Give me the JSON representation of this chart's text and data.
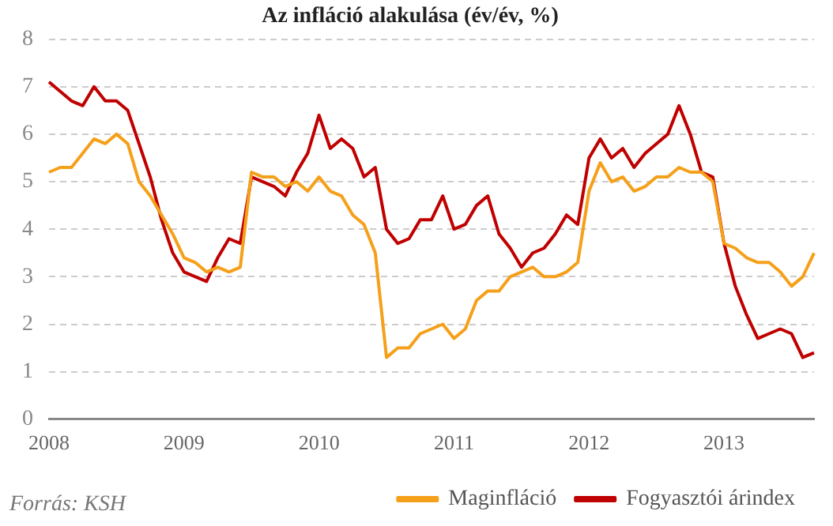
{
  "chart_data": {
    "type": "line",
    "title": "Az infláció alakulása (év/év, %)",
    "categories": [
      "2008",
      null,
      null,
      null,
      null,
      null,
      null,
      null,
      null,
      null,
      null,
      null,
      "2009",
      null,
      null,
      null,
      null,
      null,
      null,
      null,
      null,
      null,
      null,
      null,
      "2010",
      null,
      null,
      null,
      null,
      null,
      null,
      null,
      null,
      null,
      null,
      null,
      "2011",
      null,
      null,
      null,
      null,
      null,
      null,
      null,
      null,
      null,
      null,
      null,
      "2012",
      null,
      null,
      null,
      null,
      null,
      null,
      null,
      null,
      null,
      null,
      null,
      "2013",
      null,
      null,
      null,
      null,
      null,
      null,
      null,
      null
    ],
    "series": [
      {
        "name": "Maginfláció",
        "color": "#f5a01a",
        "values": [
          5.2,
          5.3,
          5.3,
          5.6,
          5.9,
          5.8,
          6.0,
          5.8,
          5.0,
          4.7,
          4.3,
          3.9,
          3.4,
          3.3,
          3.1,
          3.2,
          3.1,
          3.2,
          5.2,
          5.1,
          5.1,
          4.9,
          5.0,
          4.8,
          5.1,
          4.8,
          4.7,
          4.3,
          4.1,
          3.5,
          1.3,
          1.5,
          1.5,
          1.8,
          1.9,
          2.0,
          1.7,
          1.9,
          2.5,
          2.7,
          2.7,
          3.0,
          3.1,
          3.2,
          3.0,
          3.0,
          3.1,
          3.3,
          4.8,
          5.4,
          5.0,
          5.1,
          4.8,
          4.9,
          5.1,
          5.1,
          5.3,
          5.2,
          5.2,
          5.0,
          3.7,
          3.6,
          3.4,
          3.3,
          3.3,
          3.1,
          2.8,
          3.0,
          3.5
        ]
      },
      {
        "name": "Fogyasztói árindex",
        "color": "#c00000",
        "values": [
          7.1,
          6.9,
          6.7,
          6.6,
          7.0,
          6.7,
          6.7,
          6.5,
          5.8,
          5.1,
          4.2,
          3.5,
          3.1,
          3.0,
          2.9,
          3.4,
          3.8,
          3.7,
          5.1,
          5.0,
          4.9,
          4.7,
          5.2,
          5.6,
          6.4,
          5.7,
          5.9,
          5.7,
          5.1,
          5.3,
          4.0,
          3.7,
          3.8,
          4.2,
          4.2,
          4.7,
          4.0,
          4.1,
          4.5,
          4.7,
          3.9,
          3.6,
          3.2,
          3.5,
          3.6,
          3.9,
          4.3,
          4.1,
          5.5,
          5.9,
          5.5,
          5.7,
          5.3,
          5.6,
          5.8,
          6.0,
          6.6,
          6.0,
          5.2,
          5.1,
          3.7,
          2.8,
          2.2,
          1.7,
          1.8,
          1.9,
          1.8,
          1.3,
          1.4
        ]
      }
    ],
    "ylim": [
      0,
      8
    ],
    "yticks": [
      0,
      1,
      2,
      3,
      4,
      5,
      6,
      7,
      8
    ],
    "grid": "y",
    "legend": "bottom right",
    "marker": "none",
    "line_style": "solid",
    "annotations": [
      "Forrás: KSH"
    ]
  }
}
